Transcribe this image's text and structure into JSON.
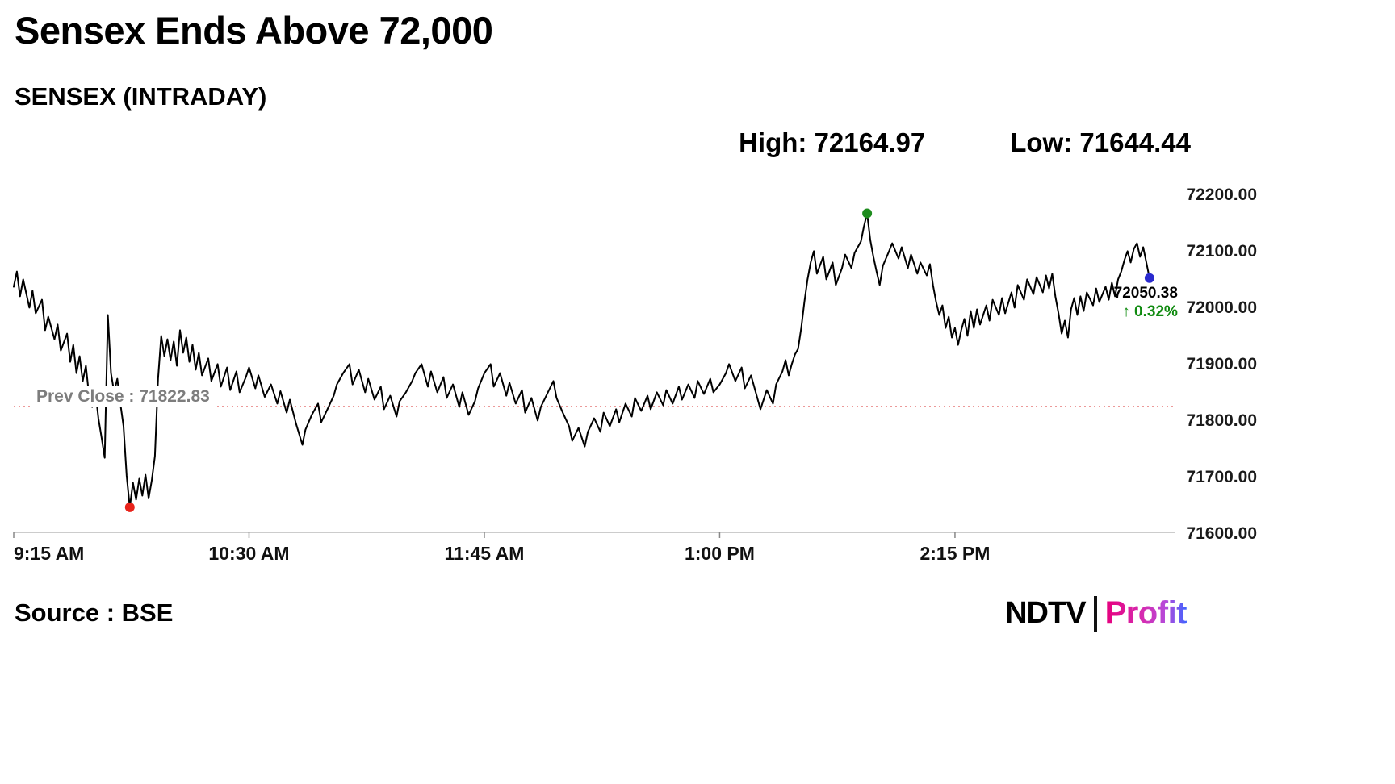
{
  "header": {
    "title": "Sensex Ends Above 72,000",
    "subtitle": "SENSEX (INTRADAY)"
  },
  "stats": {
    "high_label": "High:",
    "high_value": "72164.97",
    "low_label": "Low:",
    "low_value": "71644.44"
  },
  "chart_data": {
    "type": "line",
    "title": "SENSEX (INTRADAY)",
    "line_color": "#000000",
    "x_axis": {
      "unit": "minutes-from-9:15AM",
      "domain": [
        0,
        370
      ],
      "ticks": [
        {
          "t": 0,
          "label": "9:15 AM"
        },
        {
          "t": 75,
          "label": "10:30 AM"
        },
        {
          "t": 150,
          "label": "11:45 AM"
        },
        {
          "t": 225,
          "label": "1:00 PM"
        },
        {
          "t": 300,
          "label": "2:15 PM"
        }
      ]
    },
    "y_axis": {
      "domain": [
        71600,
        72200
      ],
      "ticks": [
        {
          "v": 72200,
          "label": "72200.00"
        },
        {
          "v": 72100,
          "label": "72100.00"
        },
        {
          "v": 72000,
          "label": "72000.00"
        },
        {
          "v": 71900,
          "label": "71900.00"
        },
        {
          "v": 71800,
          "label": "71800.00"
        },
        {
          "v": 71700,
          "label": "71700.00"
        },
        {
          "v": 71600,
          "label": "71600.00"
        }
      ]
    },
    "prev_close": {
      "value": 71822.83,
      "label": "Prev Close : 71822.83",
      "line_color": "#e05c5c",
      "label_color": "#7d7d7d"
    },
    "high": {
      "t": 272,
      "value": 72164.97,
      "marker_color": "#1e8c1e"
    },
    "low": {
      "t": 37,
      "value": 71644.44,
      "marker_color": "#e8221a"
    },
    "last": {
      "t": 362,
      "value": 72050.38,
      "label": "72050.38",
      "marker_color": "#2a2ace",
      "change_arrow": "↑",
      "change_pct": "0.32%",
      "change_color": "#0f8a0f"
    },
    "points": [
      [
        0,
        72035
      ],
      [
        1,
        72062
      ],
      [
        2,
        72018
      ],
      [
        3,
        72048
      ],
      [
        5,
        71998
      ],
      [
        6,
        72028
      ],
      [
        7,
        71988
      ],
      [
        9,
        72012
      ],
      [
        10,
        71958
      ],
      [
        11,
        71982
      ],
      [
        13,
        71942
      ],
      [
        14,
        71968
      ],
      [
        15,
        71922
      ],
      [
        17,
        71952
      ],
      [
        18,
        71902
      ],
      [
        19,
        71932
      ],
      [
        20,
        71882
      ],
      [
        21,
        71912
      ],
      [
        22,
        71868
      ],
      [
        23,
        71895
      ],
      [
        24,
        71842
      ],
      [
        25,
        71822
      ],
      [
        26,
        71852
      ],
      [
        27,
        71802
      ],
      [
        28,
        71768
      ],
      [
        29,
        71732
      ],
      [
        30,
        71985
      ],
      [
        31,
        71882
      ],
      [
        32,
        71848
      ],
      [
        33,
        71872
      ],
      [
        34,
        71828
      ],
      [
        35,
        71788
      ],
      [
        36,
        71700
      ],
      [
        37,
        71644.44
      ],
      [
        38,
        71688
      ],
      [
        39,
        71658
      ],
      [
        40,
        71695
      ],
      [
        41,
        71665
      ],
      [
        42,
        71702
      ],
      [
        43,
        71660
      ],
      [
        44,
        71692
      ],
      [
        45,
        71735
      ],
      [
        46,
        71872
      ],
      [
        47,
        71948
      ],
      [
        48,
        71912
      ],
      [
        49,
        71942
      ],
      [
        50,
        71905
      ],
      [
        51,
        71938
      ],
      [
        52,
        71895
      ],
      [
        53,
        71958
      ],
      [
        54,
        71918
      ],
      [
        55,
        71945
      ],
      [
        56,
        71902
      ],
      [
        57,
        71932
      ],
      [
        58,
        71888
      ],
      [
        59,
        71918
      ],
      [
        60,
        71878
      ],
      [
        62,
        71908
      ],
      [
        63,
        71868
      ],
      [
        65,
        71898
      ],
      [
        66,
        71858
      ],
      [
        68,
        71892
      ],
      [
        69,
        71852
      ],
      [
        71,
        71885
      ],
      [
        72,
        71848
      ],
      [
        74,
        71875
      ],
      [
        75,
        71892
      ],
      [
        77,
        71855
      ],
      [
        78,
        71878
      ],
      [
        80,
        71840
      ],
      [
        82,
        71862
      ],
      [
        84,
        71828
      ],
      [
        85,
        71850
      ],
      [
        87,
        71812
      ],
      [
        88,
        71835
      ],
      [
        90,
        71792
      ],
      [
        92,
        71755
      ],
      [
        93,
        71782
      ],
      [
        95,
        71808
      ],
      [
        97,
        71828
      ],
      [
        98,
        71795
      ],
      [
        100,
        71818
      ],
      [
        102,
        71842
      ],
      [
        103,
        71862
      ],
      [
        105,
        71882
      ],
      [
        107,
        71898
      ],
      [
        108,
        71862
      ],
      [
        110,
        71888
      ],
      [
        112,
        71848
      ],
      [
        113,
        71872
      ],
      [
        115,
        71835
      ],
      [
        117,
        71858
      ],
      [
        118,
        71818
      ],
      [
        120,
        71842
      ],
      [
        122,
        71805
      ],
      [
        123,
        71832
      ],
      [
        125,
        71848
      ],
      [
        127,
        71868
      ],
      [
        128,
        71882
      ],
      [
        130,
        71898
      ],
      [
        132,
        71858
      ],
      [
        133,
        71885
      ],
      [
        135,
        71848
      ],
      [
        137,
        71875
      ],
      [
        138,
        71838
      ],
      [
        140,
        71862
      ],
      [
        142,
        71822
      ],
      [
        143,
        71848
      ],
      [
        145,
        71808
      ],
      [
        147,
        71832
      ],
      [
        148,
        71855
      ],
      [
        150,
        71882
      ],
      [
        152,
        71898
      ],
      [
        153,
        71858
      ],
      [
        155,
        71882
      ],
      [
        157,
        71842
      ],
      [
        158,
        71865
      ],
      [
        160,
        71828
      ],
      [
        162,
        71852
      ],
      [
        163,
        71812
      ],
      [
        165,
        71838
      ],
      [
        167,
        71798
      ],
      [
        168,
        71822
      ],
      [
        170,
        71845
      ],
      [
        172,
        71868
      ],
      [
        173,
        71838
      ],
      [
        175,
        71812
      ],
      [
        177,
        71788
      ],
      [
        178,
        71762
      ],
      [
        180,
        71785
      ],
      [
        182,
        71752
      ],
      [
        183,
        71778
      ],
      [
        185,
        71802
      ],
      [
        187,
        71778
      ],
      [
        188,
        71812
      ],
      [
        190,
        71788
      ],
      [
        192,
        71818
      ],
      [
        193,
        71795
      ],
      [
        195,
        71828
      ],
      [
        197,
        71805
      ],
      [
        198,
        71838
      ],
      [
        200,
        71815
      ],
      [
        202,
        71842
      ],
      [
        203,
        71818
      ],
      [
        205,
        71848
      ],
      [
        207,
        71825
      ],
      [
        208,
        71852
      ],
      [
        210,
        71828
      ],
      [
        212,
        71858
      ],
      [
        213,
        71835
      ],
      [
        215,
        71862
      ],
      [
        217,
        71838
      ],
      [
        218,
        71868
      ],
      [
        220,
        71845
      ],
      [
        222,
        71872
      ],
      [
        223,
        71848
      ],
      [
        225,
        71862
      ],
      [
        227,
        71882
      ],
      [
        228,
        71898
      ],
      [
        230,
        71868
      ],
      [
        232,
        71892
      ],
      [
        233,
        71855
      ],
      [
        235,
        71878
      ],
      [
        237,
        71838
      ],
      [
        238,
        71818
      ],
      [
        240,
        71852
      ],
      [
        242,
        71828
      ],
      [
        243,
        71862
      ],
      [
        245,
        71885
      ],
      [
        246,
        71905
      ],
      [
        247,
        71878
      ],
      [
        248,
        71898
      ],
      [
        249,
        71915
      ],
      [
        250,
        71925
      ],
      [
        251,
        71962
      ],
      [
        252,
        72008
      ],
      [
        253,
        72048
      ],
      [
        254,
        72078
      ],
      [
        255,
        72098
      ],
      [
        256,
        72058
      ],
      [
        258,
        72088
      ],
      [
        259,
        72048
      ],
      [
        261,
        72078
      ],
      [
        262,
        72038
      ],
      [
        264,
        72068
      ],
      [
        265,
        72092
      ],
      [
        267,
        72068
      ],
      [
        268,
        72095
      ],
      [
        270,
        72115
      ],
      [
        271,
        72142
      ],
      [
        272,
        72164.97
      ],
      [
        273,
        72118
      ],
      [
        274,
        72088
      ],
      [
        275,
        72062
      ],
      [
        276,
        72038
      ],
      [
        277,
        72072
      ],
      [
        279,
        72098
      ],
      [
        280,
        72112
      ],
      [
        282,
        72085
      ],
      [
        283,
        72105
      ],
      [
        285,
        72068
      ],
      [
        286,
        72092
      ],
      [
        288,
        72058
      ],
      [
        289,
        72078
      ],
      [
        291,
        72055
      ],
      [
        292,
        72075
      ],
      [
        293,
        72038
      ],
      [
        294,
        72008
      ],
      [
        295,
        71985
      ],
      [
        296,
        72002
      ],
      [
        297,
        71962
      ],
      [
        298,
        71982
      ],
      [
        299,
        71945
      ],
      [
        300,
        71962
      ],
      [
        301,
        71932
      ],
      [
        302,
        71958
      ],
      [
        303,
        71978
      ],
      [
        304,
        71948
      ],
      [
        305,
        71992
      ],
      [
        306,
        71962
      ],
      [
        307,
        71995
      ],
      [
        308,
        71968
      ],
      [
        310,
        72002
      ],
      [
        311,
        71975
      ],
      [
        312,
        72012
      ],
      [
        314,
        71985
      ],
      [
        315,
        72015
      ],
      [
        316,
        71988
      ],
      [
        318,
        72025
      ],
      [
        319,
        71998
      ],
      [
        320,
        72038
      ],
      [
        322,
        72012
      ],
      [
        323,
        72048
      ],
      [
        325,
        72022
      ],
      [
        326,
        72052
      ],
      [
        328,
        72025
      ],
      [
        329,
        72055
      ],
      [
        330,
        72032
      ],
      [
        331,
        72058
      ],
      [
        332,
        72018
      ],
      [
        333,
        71988
      ],
      [
        334,
        71952
      ],
      [
        335,
        71975
      ],
      [
        336,
        71945
      ],
      [
        337,
        71995
      ],
      [
        338,
        72015
      ],
      [
        339,
        71985
      ],
      [
        340,
        72018
      ],
      [
        341,
        71992
      ],
      [
        342,
        72025
      ],
      [
        344,
        72002
      ],
      [
        345,
        72032
      ],
      [
        346,
        72008
      ],
      [
        348,
        72035
      ],
      [
        349,
        72012
      ],
      [
        350,
        72042
      ],
      [
        351,
        72018
      ],
      [
        352,
        72048
      ],
      [
        353,
        72062
      ],
      [
        354,
        72082
      ],
      [
        355,
        72098
      ],
      [
        356,
        72078
      ],
      [
        357,
        72102
      ],
      [
        358,
        72112
      ],
      [
        359,
        72088
      ],
      [
        360,
        72105
      ],
      [
        361,
        72078
      ],
      [
        362,
        72050.38
      ]
    ]
  },
  "footer": {
    "source": "Source : BSE",
    "logo_ndtv": "NDTV",
    "logo_separator": "|",
    "logo_profit": "Profit"
  }
}
